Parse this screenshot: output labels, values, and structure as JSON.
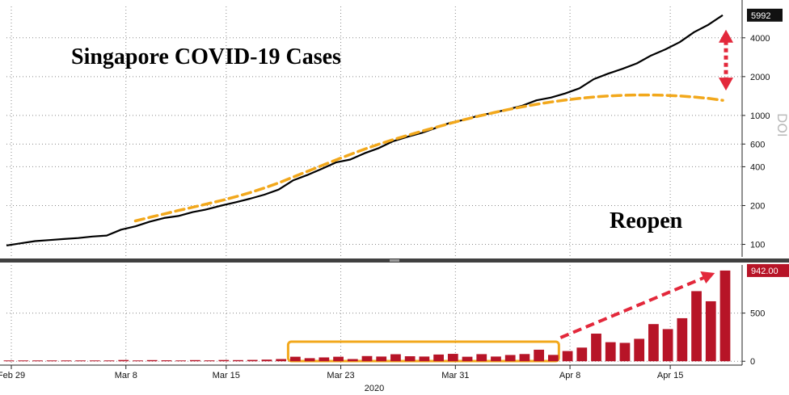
{
  "chart_data": {
    "type": "line+bar",
    "title": "Singapore COVID-19 Cases",
    "annotation": "Reopen",
    "ticker": "DOI",
    "x_labels": [
      "Feb 29",
      "Mar 8",
      "Mar 15",
      "Mar 23",
      "Mar 31",
      "Apr 8",
      "Apr 15"
    ],
    "x_label_index": [
      0,
      8,
      15,
      23,
      31,
      39,
      46
    ],
    "year_label": "2020",
    "top_panel": {
      "scale": "log",
      "ylim": [
        80,
        7000
      ],
      "ytick_labels": [
        "100",
        "200",
        "400",
        "600",
        "1000",
        "2000",
        "4000"
      ],
      "ytick_values": [
        100,
        200,
        400,
        600,
        1000,
        2000,
        4000
      ],
      "last_value_label": "5992",
      "series": [
        {
          "name": "Total cases",
          "color": "#000000",
          "values": [
            98,
            102,
            106,
            108,
            110,
            112,
            115,
            117,
            130,
            138,
            150,
            160,
            166,
            178,
            187,
            200,
            212,
            226,
            243,
            266,
            313,
            345,
            385,
            432,
            455,
            509,
            558,
            631,
            683,
            732,
            802,
            879,
            926,
            1000,
            1049,
            1114,
            1189,
            1309,
            1375,
            1481,
            1623,
            1910,
            2108,
            2299,
            2532,
            2918,
            3252,
            3699,
            4427,
            5050,
            5992
          ]
        },
        {
          "name": "Trend",
          "color": "#f2a81c",
          "style": "dashed",
          "values": [
            null,
            null,
            null,
            null,
            null,
            null,
            null,
            null,
            null,
            152,
            162,
            172,
            183,
            194,
            206,
            219,
            234,
            252,
            274,
            300,
            332,
            368,
            408,
            452,
            498,
            548,
            598,
            650,
            700,
            755,
            810,
            870,
            930,
            990,
            1050,
            1110,
            1165,
            1220,
            1270,
            1315,
            1355,
            1390,
            1415,
            1432,
            1440,
            1440,
            1432,
            1415,
            1390,
            1355,
            1310
          ]
        }
      ]
    },
    "bottom_panel": {
      "ylim": [
        -40,
        1000
      ],
      "ytick_labels": [
        "0",
        "500"
      ],
      "ytick_values": [
        0,
        500
      ],
      "last_value_label": "942.00",
      "series": [
        {
          "name": "Daily new cases",
          "color": "#b71427",
          "values": [
            0,
            2,
            4,
            2,
            2,
            2,
            3,
            2,
            13,
            8,
            12,
            10,
            6,
            12,
            9,
            13,
            12,
            14,
            17,
            23,
            47,
            32,
            40,
            47,
            23,
            54,
            49,
            73,
            52,
            49,
            70,
            77,
            47,
            74,
            49,
            65,
            75,
            120,
            66,
            106,
            142,
            287,
            198,
            191,
            233,
            386,
            334,
            447,
            728,
            623,
            942
          ]
        }
      ]
    },
    "highlight_box": {
      "from_index": 20,
      "to_index": 38,
      "color": "#f2a81c"
    },
    "colors": {
      "flag_top": "#111111",
      "flag_bottom": "#b71427",
      "arrow_red": "#e3283b",
      "grid": "#8a8a8a",
      "separator": "#404040"
    }
  }
}
